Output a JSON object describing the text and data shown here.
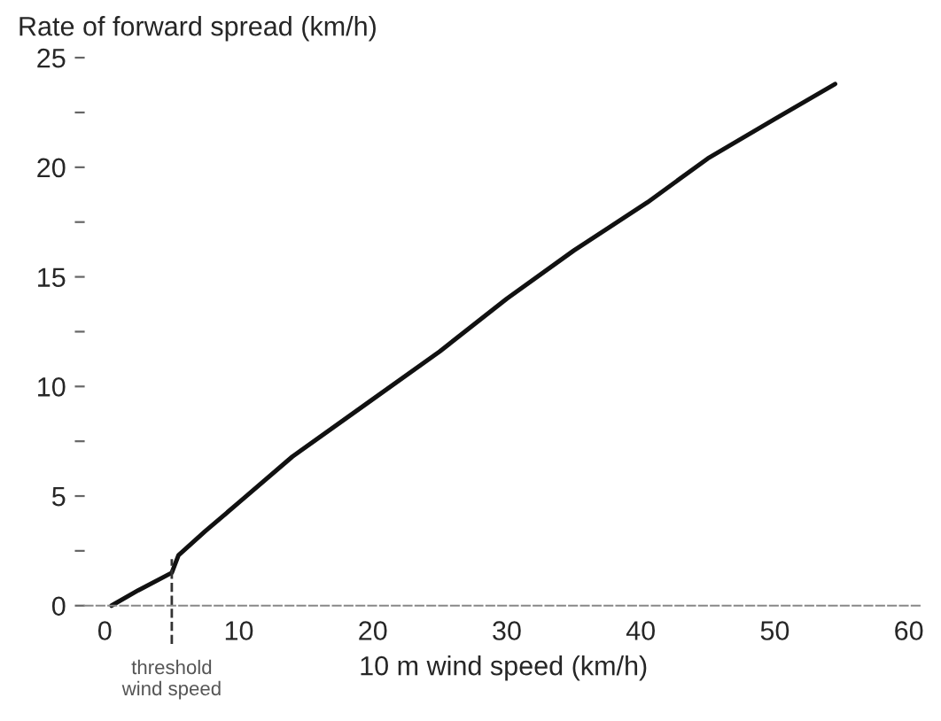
{
  "chart_data": {
    "type": "line",
    "ylabel": "Rate of forward spread (km/h)",
    "xlabel": "10 m wind speed (km/h)",
    "x": [
      0.5,
      2.5,
      5,
      5.5,
      7.5,
      10,
      14,
      19.5,
      25,
      30,
      35,
      40.5,
      45,
      50,
      54.5
    ],
    "series": [
      {
        "color": "#111111",
        "values": [
          0,
          0.7,
          1.5,
          2.3,
          3.4,
          4.7,
          6.8,
          9.2,
          11.6,
          14,
          16.2,
          18.4,
          20.4,
          22.2,
          23.8
        ]
      }
    ],
    "xlim": [
      -1.5,
      61
    ],
    "ylim": [
      0,
      25
    ],
    "xticks": [
      0,
      10,
      20,
      30,
      40,
      50,
      60
    ],
    "yticks": [
      0,
      {
        "value": 2.5,
        "label": null
      },
      5,
      {
        "value": 7.5,
        "label": null
      },
      10,
      {
        "value": 12.5,
        "label": null
      },
      15,
      {
        "value": 17.5,
        "label": null
      },
      20,
      {
        "value": 22.5,
        "label": null
      },
      25
    ],
    "ref_lines": [
      {
        "axis": "x",
        "value": 5,
        "label": "threshold\nwind speed",
        "color": "#333333",
        "line_style": "dashed"
      }
    ],
    "grid": false,
    "legend": false
  }
}
